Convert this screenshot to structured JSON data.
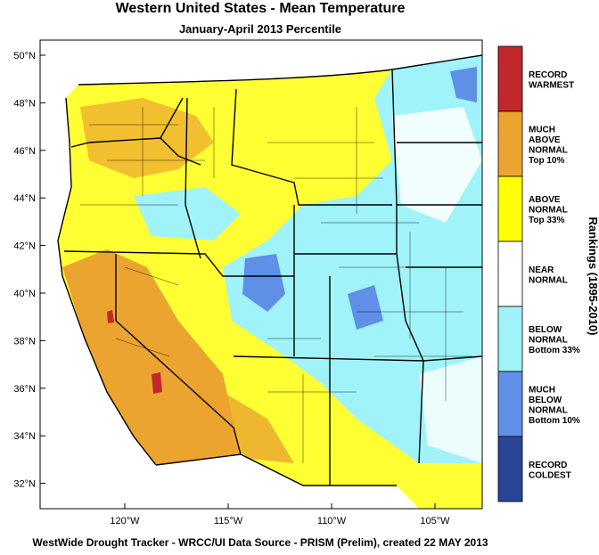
{
  "title": "Western United States - Mean Temperature",
  "subtitle": "January-April 2013 Percentile",
  "latitude_labels": [
    "50°N",
    "48°N",
    "46°N",
    "44°N",
    "42°N",
    "40°N",
    "38°N",
    "36°N",
    "34°N",
    "32°N"
  ],
  "longitude_labels": [
    "120°W",
    "115°W",
    "110°W",
    "105°W"
  ],
  "legend": {
    "title": "Rankings (1895-2010)",
    "items": [
      {
        "lines": [
          "RECORD",
          "WARMEST"
        ],
        "color": "#c1272d"
      },
      {
        "lines": [
          "MUCH",
          "ABOVE",
          "NORMAL",
          "Top 10%"
        ],
        "color": "#eba42f"
      },
      {
        "lines": [
          "ABOVE",
          "NORMAL",
          "Top 33%"
        ],
        "color": "#ffff00"
      },
      {
        "lines": [
          "NEAR",
          "NORMAL"
        ],
        "color": "#ffffff"
      },
      {
        "lines": [
          "BELOW",
          "NORMAL",
          "Bottom 33%"
        ],
        "color": "#9ff3f9"
      },
      {
        "lines": [
          "MUCH",
          "BELOW",
          "NORMAL",
          "Bottom 10%"
        ],
        "color": "#5f8fe6"
      },
      {
        "lines": [
          "RECORD",
          "COLDEST"
        ],
        "color": "#2b4596"
      }
    ]
  },
  "footer": "WestWide Drought Tracker - WRCC/UI  Data Source - PRISM (Prelim), created 22 MAY 2013"
}
